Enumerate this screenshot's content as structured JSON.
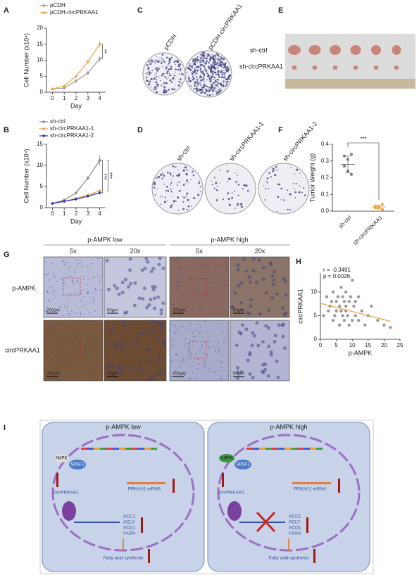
{
  "panel_labels": [
    "A",
    "B",
    "C",
    "D",
    "E",
    "F",
    "G",
    "H",
    "I"
  ],
  "chart_data": [
    {
      "type": "line",
      "x": [
        0,
        1,
        2,
        3,
        4
      ],
      "xlim": [
        -0.5,
        4.5
      ],
      "xticks": [
        0,
        1,
        2,
        3,
        4
      ],
      "ylim": [
        0,
        20
      ],
      "yticks": [
        0,
        5,
        10,
        15,
        20
      ],
      "x_label": "Day",
      "y_label": "Cell Number (x10⁴)",
      "series": [
        {
          "name": "pCDH",
          "color": "#999999",
          "values": [
            1,
            1.3,
            3.5,
            6,
            10.5
          ],
          "errors": [
            0.2,
            0.4,
            0.5,
            0.6,
            0.9
          ]
        },
        {
          "name": "pCDH-circPRKAA1",
          "color": "#f0a040",
          "values": [
            1,
            2,
            5,
            9.5,
            15
          ],
          "errors": [
            0.2,
            0.3,
            0.4,
            0.6,
            1
          ]
        }
      ],
      "annotations": [
        "**"
      ]
    },
    {
      "type": "line",
      "x": [
        0,
        1,
        2,
        3,
        4
      ],
      "xlim": [
        -0.5,
        4.5
      ],
      "xticks": [
        0,
        1,
        2,
        3,
        4
      ],
      "ylim": [
        0,
        15
      ],
      "yticks": [
        0,
        5,
        10,
        15
      ],
      "x_label": "Day",
      "y_label": "Cell Number (x10⁴)",
      "series": [
        {
          "name": "sh-ctrl",
          "color": "#888888",
          "values": [
            1,
            1.8,
            3.5,
            7,
            11.2
          ],
          "errors": [
            0.1,
            0.2,
            0.3,
            0.5,
            1.2
          ]
        },
        {
          "name": "sh-circPRKAA1-1",
          "color": "#f0a040",
          "values": [
            1,
            1.5,
            2.2,
            3,
            4
          ],
          "errors": [
            0.1,
            0.1,
            0.2,
            0.2,
            0.3
          ]
        },
        {
          "name": "sh-circPRKAA1-2",
          "color": "#3030c0",
          "values": [
            1,
            1.5,
            2,
            2.7,
            3.5
          ],
          "errors": [
            0.1,
            0.1,
            0.2,
            0.2,
            0.3
          ]
        }
      ],
      "annotations": [
        "***",
        "***"
      ]
    },
    {
      "type": "dot",
      "categories": [
        "sh-ctrl",
        "sh-circPRKAA1"
      ],
      "colors": [
        "#777777",
        "#f0a040"
      ],
      "points": [
        [
          0.33,
          0.31,
          0.34,
          0.27,
          0.24,
          0.22
        ],
        [
          0.03,
          0.02,
          0.04,
          0.02,
          0.03,
          0.01
        ]
      ],
      "mean": [
        0.28,
        0.025
      ],
      "sd": [
        0.05,
        0.01
      ],
      "ylim": [
        0,
        0.4
      ],
      "yticks": [
        {
          "value": 0,
          "label": "0.0"
        },
        0.1,
        0.2,
        0.3,
        0.4
      ],
      "y_label": "Tumor Weight (g)",
      "annotations": [
        "***"
      ]
    },
    {
      "type": "scatter",
      "color": "#999999",
      "line_color": "#f0a040",
      "x": [
        1,
        2,
        2.5,
        3,
        3.5,
        4,
        4,
        4.5,
        5,
        5,
        5.5,
        6,
        6,
        6.5,
        6.5,
        7,
        7,
        7.5,
        7.5,
        8,
        8,
        8,
        8.5,
        9,
        9,
        9.5,
        10,
        10,
        10.5,
        11,
        11,
        12,
        12,
        13,
        14,
        15,
        16,
        18,
        20,
        22
      ],
      "y": [
        5,
        9,
        6,
        7,
        8,
        4,
        10,
        5,
        6,
        8,
        9,
        3,
        7,
        6,
        11,
        5,
        9,
        4,
        8,
        6,
        7,
        10,
        5,
        3,
        8,
        9,
        4,
        12.5,
        7,
        5,
        8,
        4,
        9,
        6,
        3,
        5,
        7,
        4,
        3,
        2.5
      ],
      "trend": {
        "x": [
          0,
          22
        ],
        "y": [
          7.6,
          3.8
        ]
      },
      "xlim": [
        0,
        25
      ],
      "xticks": [
        0,
        5,
        10,
        15,
        20,
        25
      ],
      "ylim": [
        0,
        14
      ],
      "yticks": [
        0,
        5,
        10
      ],
      "x_label": "p-AMPK",
      "y_label": "circPRKAA1",
      "annotations": [
        "r = -0.3491",
        "p = 0.0026"
      ]
    }
  ],
  "panel_c": {
    "labels": [
      "pCDH",
      "pCDH-circPRKAA1"
    ]
  },
  "panel_d": {
    "labels": [
      "sh-ctrl",
      "sh-circPRKAA1-1",
      "sh-circPRKAA1-2"
    ]
  },
  "panel_e": {
    "labels": [
      "sh-ctrl",
      "sh-circPRKAA1"
    ]
  },
  "panel_g": {
    "groups": [
      "p-AMPK low",
      "p-AMPK high"
    ],
    "columns": [
      "5x",
      "20x",
      "5x",
      "20x"
    ],
    "rows": [
      "p-AMPK",
      "circPRKAA1"
    ],
    "scale_bars": [
      "200μm",
      "50μm",
      "200μm",
      "50μm",
      "200μm",
      "50μm",
      "200μm",
      "50μm"
    ]
  },
  "schematic": {
    "cells": [
      {
        "title": "p-AMPK low",
        "ampk": "AMPK",
        "srsf1": "SRSF1",
        "circ": "circPRKAA1",
        "mrna": "PRKAA1 mRNA",
        "genes": [
          "ACC1",
          "ACLY",
          "SCD1",
          "FASN"
        ],
        "output": "Fatty acid synthesis"
      },
      {
        "title": "p-AMPK high",
        "ampk": "AMPK",
        "srsf1": "SRSF1",
        "circ": "circPRKAA1",
        "mrna": "PRKAA1 mRNA",
        "genes": [
          "ACC1",
          "ACLY",
          "SCD1",
          "FASN"
        ],
        "output": "Fatty acid synthesis"
      }
    ]
  }
}
